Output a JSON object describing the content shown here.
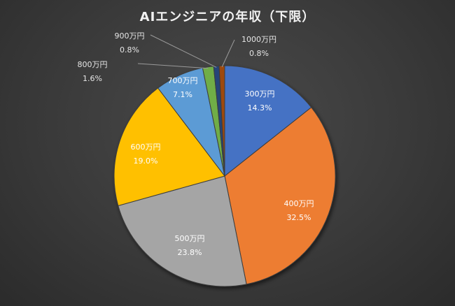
{
  "chart_data": {
    "type": "pie",
    "title": "AIエンジニアの年収（下限）",
    "categories": [
      "300万円",
      "400万円",
      "500万円",
      "600万円",
      "700万円",
      "800万円",
      "900万円",
      "1000万円"
    ],
    "values": [
      14.3,
      32.5,
      23.8,
      19.0,
      7.1,
      1.6,
      0.8,
      0.8
    ],
    "value_labels": [
      "14.3%",
      "32.5%",
      "23.8%",
      "19.0%",
      "7.1%",
      "1.6%",
      "0.8%",
      "0.8%"
    ],
    "colors": [
      "#4472c4",
      "#ed7d31",
      "#a5a5a5",
      "#ffc000",
      "#5b9bd5",
      "#70ad47",
      "#264478",
      "#9e480e"
    ],
    "legend": "none"
  }
}
